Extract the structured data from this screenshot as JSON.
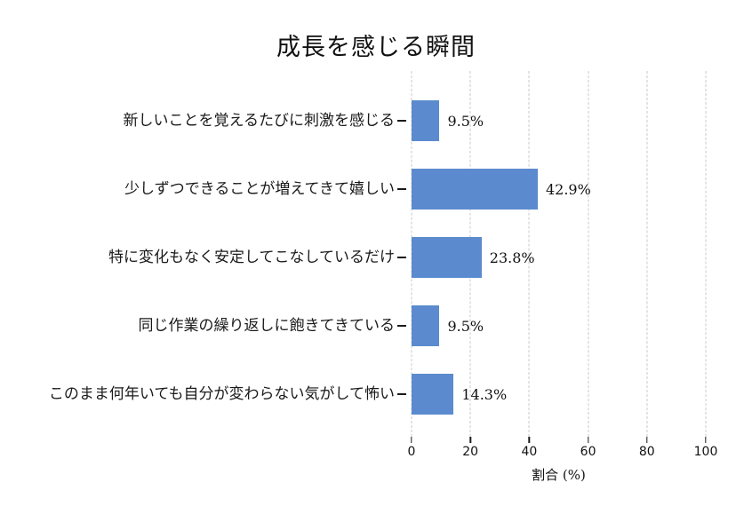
{
  "chart_data": {
    "type": "bar",
    "orientation": "horizontal",
    "title": "成長を感じる瞬間",
    "categories": [
      "新しいことを覚えるたびに刺激を感じる",
      "少しずつできることが増えてきて嬉しい",
      "特に変化もなく安定してこなしているだけ",
      "同じ作業の繰り返しに飽きてきている",
      "このまま何年いても自分が変わらない気がして怖い"
    ],
    "values": [
      9.5,
      42.9,
      23.8,
      9.5,
      14.3
    ],
    "value_labels": [
      "9.5%",
      "42.9%",
      "23.8%",
      "9.5%",
      "14.3%"
    ],
    "xlabel": "割合 (%)",
    "xlim": [
      0,
      100
    ],
    "xticks": [
      "0",
      "20",
      "40",
      "60",
      "80",
      "100"
    ],
    "grid": "vertical-dashed",
    "legend": "none",
    "bar_color": "#5b8bce",
    "gridline_color": "#c9c9c9",
    "text_color": "#1a1a1a"
  }
}
